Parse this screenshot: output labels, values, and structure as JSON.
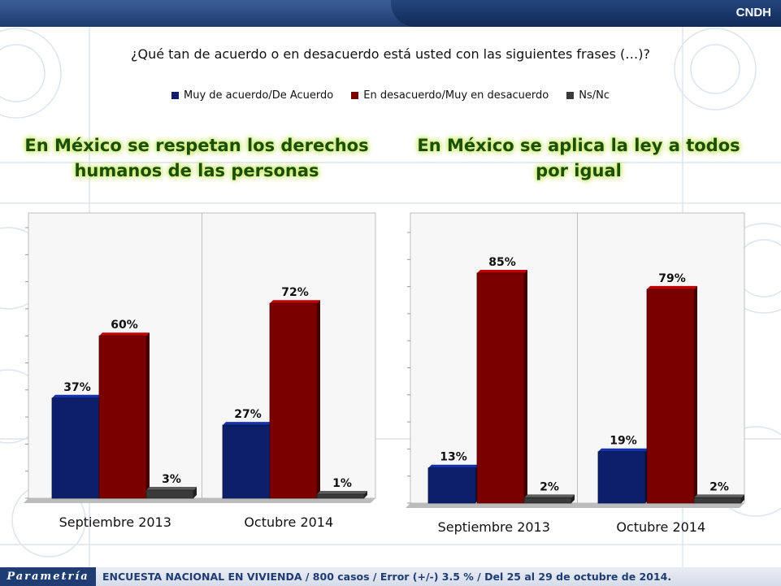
{
  "header": {
    "brand": "CNDH"
  },
  "question": "¿Qué tan de acuerdo o en desacuerdo está usted con las siguientes frases (…)?",
  "legend": [
    {
      "label": "Muy de acuerdo/De Acuerdo",
      "color": "#0d1f6b"
    },
    {
      "label": "En desacuerdo/Muy en desacuerdo",
      "color": "#7a0000"
    },
    {
      "label": "Ns/Nc",
      "color": "#3a3a3a"
    }
  ],
  "footer": {
    "logo": "Parametría",
    "text": "ENCUESTA NACIONAL EN VIVIENDA / 800 casos / Error (+/-) 3.5 % / Del 25 al 29 de octubre de 2014."
  },
  "chart_data": [
    {
      "type": "bar",
      "title": "En México se respetan los derechos humanos de las personas",
      "categories": [
        "Septiembre 2013",
        "Octubre 2014"
      ],
      "series": [
        {
          "name": "Muy de acuerdo/De Acuerdo",
          "values": [
            37,
            27
          ],
          "labels": [
            "37%",
            "27%"
          ]
        },
        {
          "name": "En desacuerdo/Muy en desacuerdo",
          "values": [
            60,
            72
          ],
          "labels": [
            "60%",
            "72%"
          ]
        },
        {
          "name": "Ns/Nc",
          "values": [
            3,
            1
          ],
          "labels": [
            "3%",
            "1%"
          ]
        }
      ],
      "ylim": [
        0,
        100
      ],
      "grid": false,
      "legend": "top"
    },
    {
      "type": "bar",
      "title": "En México se aplica la ley a todos por igual",
      "categories": [
        "Septiembre 2013",
        "Octubre 2014"
      ],
      "series": [
        {
          "name": "Muy de acuerdo/De Acuerdo",
          "values": [
            13,
            19
          ],
          "labels": [
            "13%",
            "19%"
          ]
        },
        {
          "name": "En desacuerdo/Muy en desacuerdo",
          "values": [
            85,
            79
          ],
          "labels": [
            "85%",
            "79%"
          ]
        },
        {
          "name": "Ns/Nc",
          "values": [
            2,
            2
          ],
          "labels": [
            "2%",
            "2%"
          ]
        }
      ],
      "ylim": [
        0,
        100
      ],
      "grid": false,
      "legend": "top"
    }
  ]
}
